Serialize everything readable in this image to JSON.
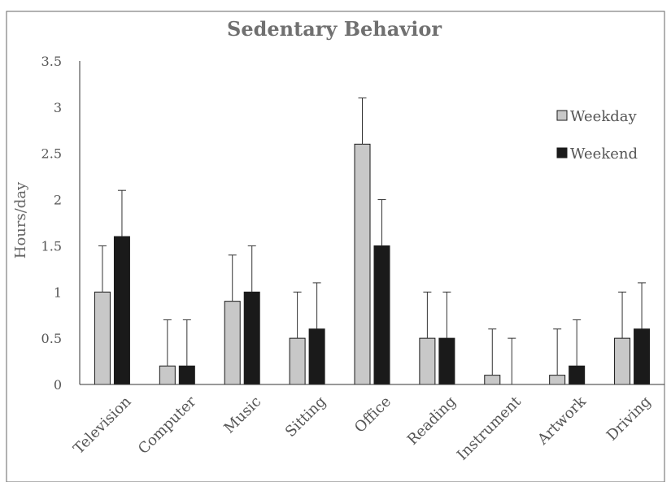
{
  "chart_data": {
    "type": "bar",
    "title": "Sedentary Behavior",
    "ylabel": "Hours/day",
    "xlabel": "",
    "ylim": [
      0,
      3.5
    ],
    "yticks": [
      0,
      0.5,
      1,
      1.5,
      2,
      2.5,
      3,
      3.5
    ],
    "ytick_labels": [
      "0",
      "0.5",
      "1",
      "1.5",
      "2",
      "2.5",
      "3",
      "3.5"
    ],
    "categories": [
      "Television",
      "Computer",
      "Music",
      "Sitting",
      "Office",
      "Reading",
      "Instrument",
      "Artwork",
      "Driving"
    ],
    "series": [
      {
        "name": "Weekday",
        "color": "#c8c8c8",
        "values": [
          1.0,
          0.2,
          0.9,
          0.5,
          2.6,
          0.5,
          0.1,
          0.1,
          0.5
        ],
        "error": [
          0.5,
          0.5,
          0.5,
          0.5,
          0.5,
          0.5,
          0.5,
          0.5,
          0.5
        ]
      },
      {
        "name": "Weekend",
        "color": "#1a1a1a",
        "values": [
          1.6,
          0.2,
          1.0,
          0.6,
          1.5,
          0.5,
          0.0,
          0.2,
          0.6
        ],
        "error": [
          0.5,
          0.5,
          0.5,
          0.5,
          0.5,
          0.5,
          0.5,
          0.5,
          0.5
        ]
      }
    ],
    "legend_position": "right",
    "grid": false
  }
}
